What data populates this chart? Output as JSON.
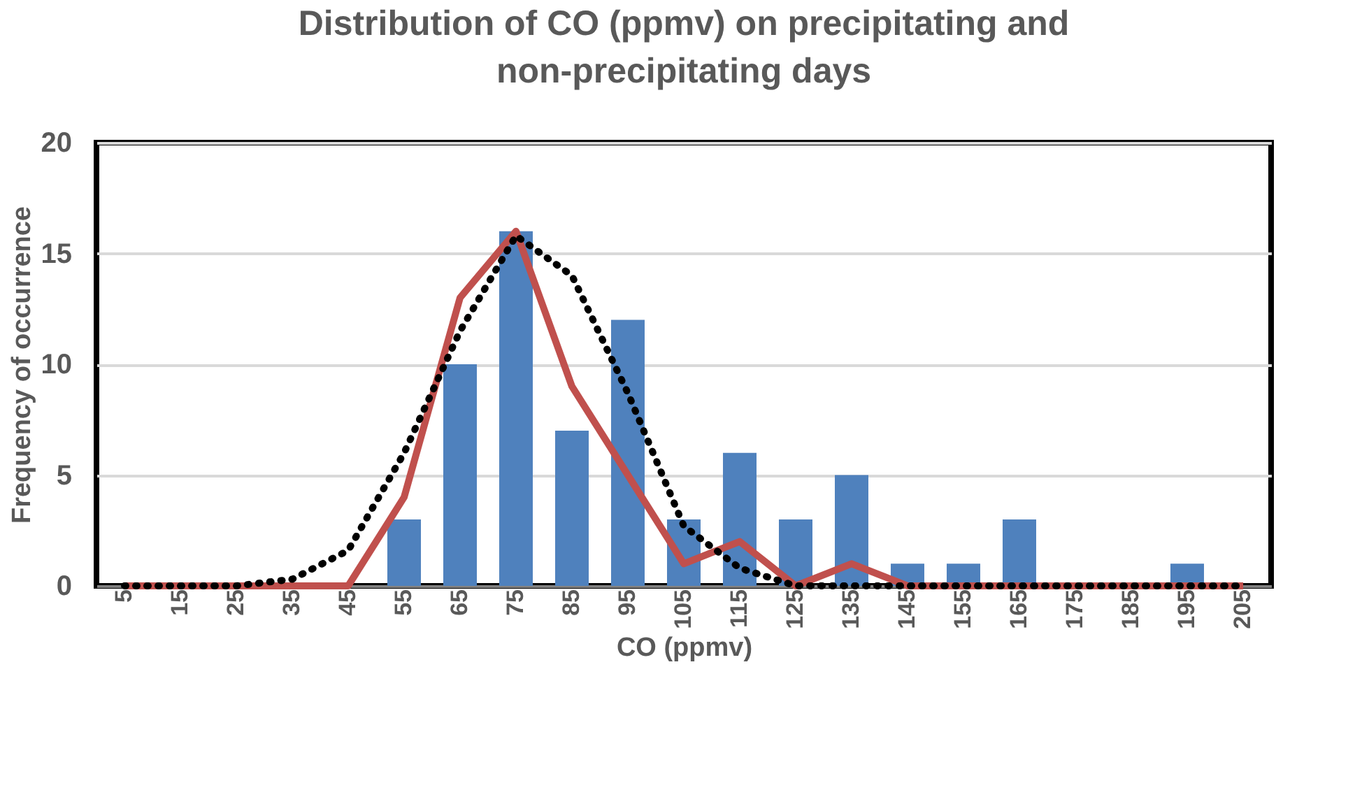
{
  "chart_data": {
    "type": "bar",
    "title": "Distribution of CO (ppmv) on precipitating and non-precipitating days",
    "xlabel": "CO (ppmv)",
    "ylabel": "Frequency of occurrence",
    "categories": [
      "5",
      "15",
      "25",
      "35",
      "45",
      "55",
      "65",
      "75",
      "85",
      "95",
      "105",
      "115",
      "125",
      "135",
      "145",
      "155",
      "165",
      "175",
      "185",
      "195",
      "205"
    ],
    "series": [
      {
        "color": "#4f81bd",
        "values": [
          0,
          0,
          0,
          0,
          0,
          3,
          10,
          16,
          7,
          12,
          3,
          6,
          3,
          5,
          1,
          1,
          3,
          0,
          0,
          1,
          0
        ]
      },
      {
        "type": "line",
        "color": "#c0504d",
        "line_style": "solid",
        "values": [
          0,
          0,
          0,
          0,
          0,
          4,
          13,
          16,
          9,
          5,
          1,
          2,
          0,
          1,
          0,
          0,
          0,
          0,
          0,
          0,
          0
        ]
      },
      {
        "type": "line",
        "color": "#000000",
        "line_style": "dotted",
        "values": [
          0,
          0,
          0,
          0.3,
          1.6,
          6,
          11.5,
          15.8,
          14,
          8.7,
          2.7,
          0.8,
          0,
          0,
          0,
          0,
          0,
          0,
          0,
          0,
          0
        ]
      }
    ],
    "ylim": [
      0,
      20
    ],
    "yticks": [
      0,
      5,
      10,
      15,
      20
    ],
    "grid": "y"
  }
}
